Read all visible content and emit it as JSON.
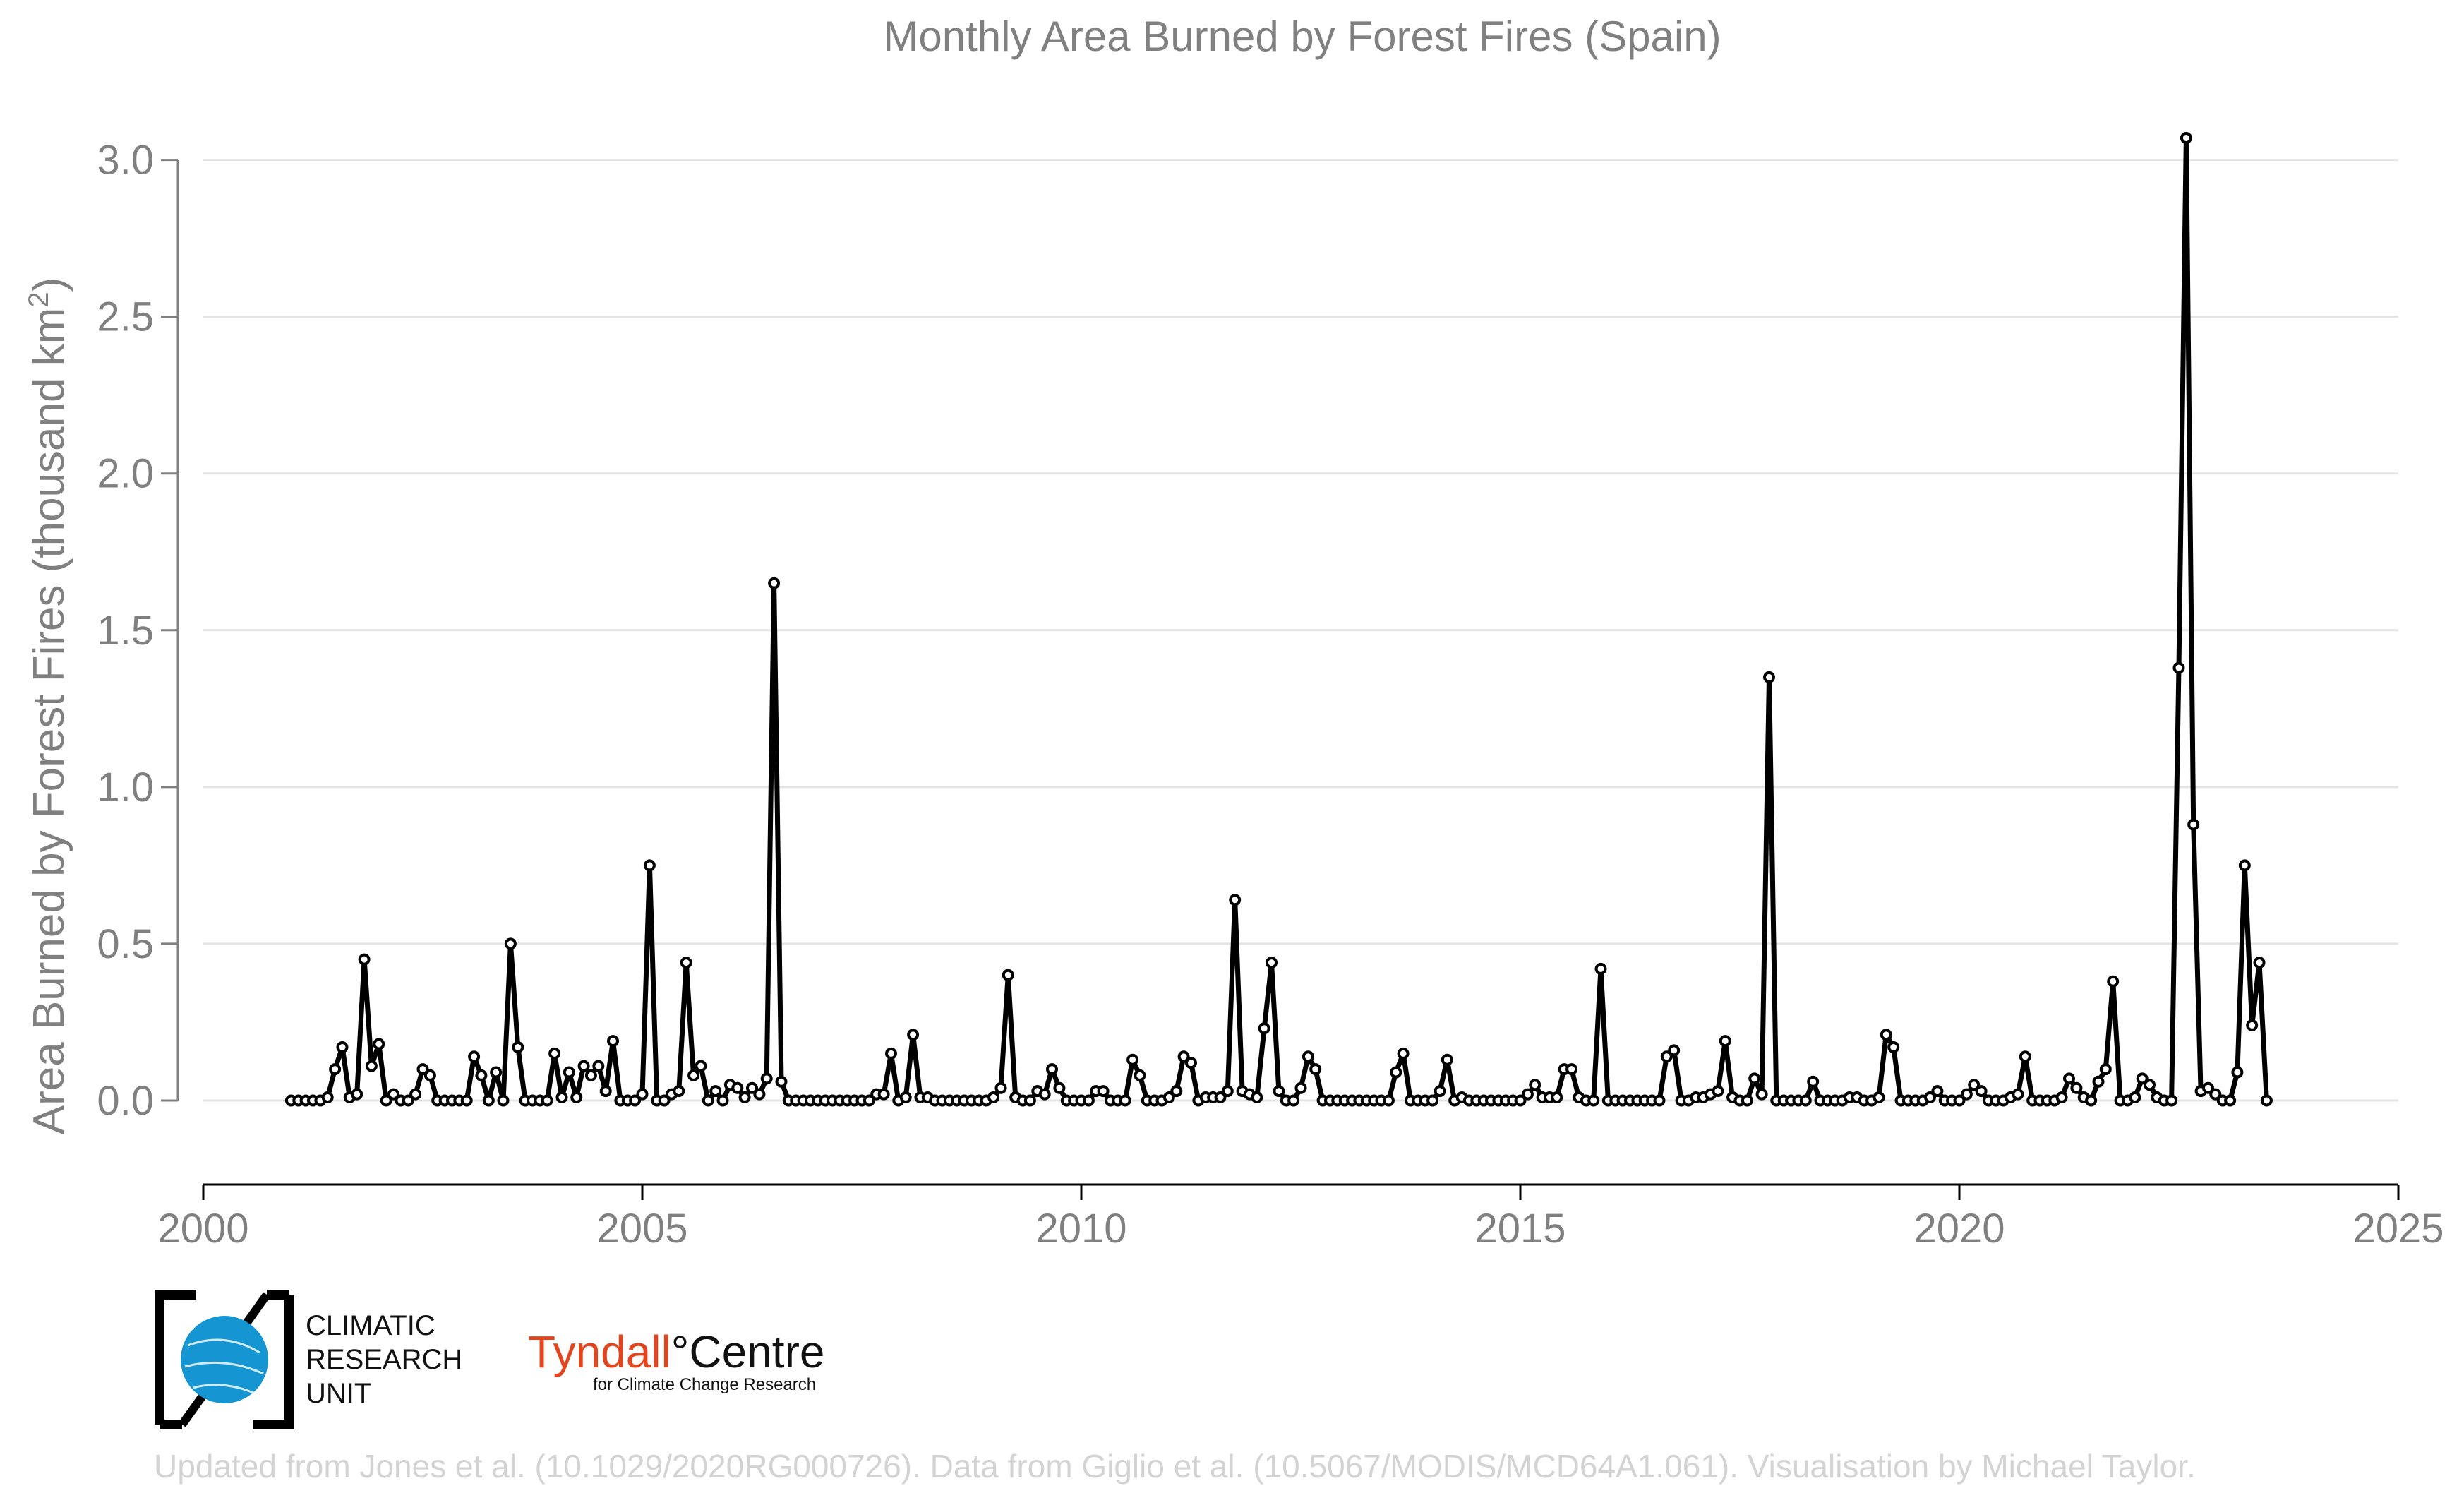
{
  "chart_data": {
    "type": "line",
    "title": "Monthly Area Burned by Forest Fires (Spain)",
    "ylabel": "Area Burned by Forest Fires (thousand km",
    "ylabel_sup": "2",
    "ylabel_close": ")",
    "xlim": [
      2000,
      2025
    ],
    "ylim": [
      -0.25,
      3.15
    ],
    "xticks": [
      2000,
      2005,
      2010,
      2015,
      2020,
      2025
    ],
    "xtick_labels": [
      "2000",
      "2005",
      "2010",
      "2015",
      "2020",
      "2025"
    ],
    "yticks": [
      0.0,
      0.5,
      1.0,
      1.5,
      2.0,
      2.5,
      3.0
    ],
    "ytick_labels": [
      "0.0",
      "0.5",
      "1.0",
      "1.5",
      "2.0",
      "2.5",
      "3.0"
    ],
    "grid": "horizontal",
    "line_color": "#000000",
    "start": "2001-01",
    "series": [
      {
        "values": [
          0,
          0,
          0,
          0,
          0,
          0.01,
          0.1,
          0.17,
          0.01,
          0.02,
          0.45,
          0.11,
          0.18,
          0,
          0.02,
          0,
          0,
          0.02,
          0.1,
          0.08,
          0,
          0,
          0,
          0,
          0,
          0.14,
          0.08,
          0,
          0.09,
          0,
          0.5,
          0.17,
          0,
          0,
          0,
          0,
          0.15,
          0.01,
          0.09,
          0.01,
          0.11,
          0.08,
          0.11,
          0.03,
          0.19,
          0,
          0,
          0,
          0.02,
          0.75,
          0,
          0,
          0.02,
          0.03,
          0.44,
          0.08,
          0.11,
          0,
          0.03,
          0,
          0.05,
          0.04,
          0.01,
          0.04,
          0.02,
          0.07,
          1.65,
          0.06,
          0,
          0,
          0,
          0,
          0,
          0,
          0,
          0,
          0,
          0,
          0,
          0,
          0.02,
          0.02,
          0.15,
          0,
          0.01,
          0.21,
          0.01,
          0.01,
          0,
          0,
          0,
          0,
          0,
          0,
          0,
          0,
          0.01,
          0.04,
          0.4,
          0.01,
          0,
          0,
          0.03,
          0.02,
          0.1,
          0.04,
          0,
          0,
          0,
          0,
          0.03,
          0.03,
          0,
          0,
          0,
          0.13,
          0.08,
          0,
          0,
          0,
          0.01,
          0.03,
          0.14,
          0.12,
          0,
          0.01,
          0.01,
          0.01,
          0.03,
          0.64,
          0.03,
          0.02,
          0.01,
          0.23,
          0.44,
          0.03,
          0,
          0,
          0.04,
          0.14,
          0.1,
          0,
          0,
          0,
          0,
          0,
          0,
          0,
          0,
          0,
          0,
          0.09,
          0.15,
          0,
          0,
          0,
          0,
          0.03,
          0.13,
          0,
          0.01,
          0,
          0,
          0,
          0,
          0,
          0,
          0,
          0,
          0.02,
          0.05,
          0.01,
          0.01,
          0.01,
          0.1,
          0.1,
          0.01,
          0,
          0,
          0.42,
          0,
          0,
          0,
          0,
          0,
          0,
          0,
          0,
          0.14,
          0.16,
          0,
          0,
          0.01,
          0.01,
          0.02,
          0.03,
          0.19,
          0.01,
          0,
          0,
          0.07,
          0.02,
          1.35,
          0,
          0,
          0,
          0,
          0,
          0.06,
          0,
          0,
          0,
          0,
          0.01,
          0.01,
          0,
          0,
          0.01,
          0.21,
          0.17,
          0,
          0,
          0,
          0,
          0.01,
          0.03,
          0,
          0,
          0,
          0.02,
          0.05,
          0.03,
          0,
          0,
          0,
          0.01,
          0.02,
          0.14,
          0,
          0,
          0,
          0,
          0.01,
          0.07,
          0.04,
          0.01,
          0,
          0.06,
          0.1,
          0.38,
          0,
          0,
          0.01,
          0.07,
          0.05,
          0.01,
          0,
          0,
          1.38,
          3.07,
          0.88,
          0.03,
          0.04,
          0.02,
          0,
          0,
          0.09,
          0.75,
          0.24,
          0.44,
          0
        ]
      }
    ]
  },
  "logos": {
    "cru_line1": "CLIMATIC",
    "cru_line2": "RESEARCH",
    "cru_line3": "UNIT",
    "tyndall_name": "Tyndall",
    "tyndall_mark": "°",
    "tyndall_centre": "Centre",
    "tyndall_sub": "for Climate Change Research"
  },
  "credit": "Updated from Jones et al. (10.1029/2020RG000726). Data from Giglio et al. (10.5067/MODIS/MCD64A1.061). Visualisation by Michael Taylor."
}
